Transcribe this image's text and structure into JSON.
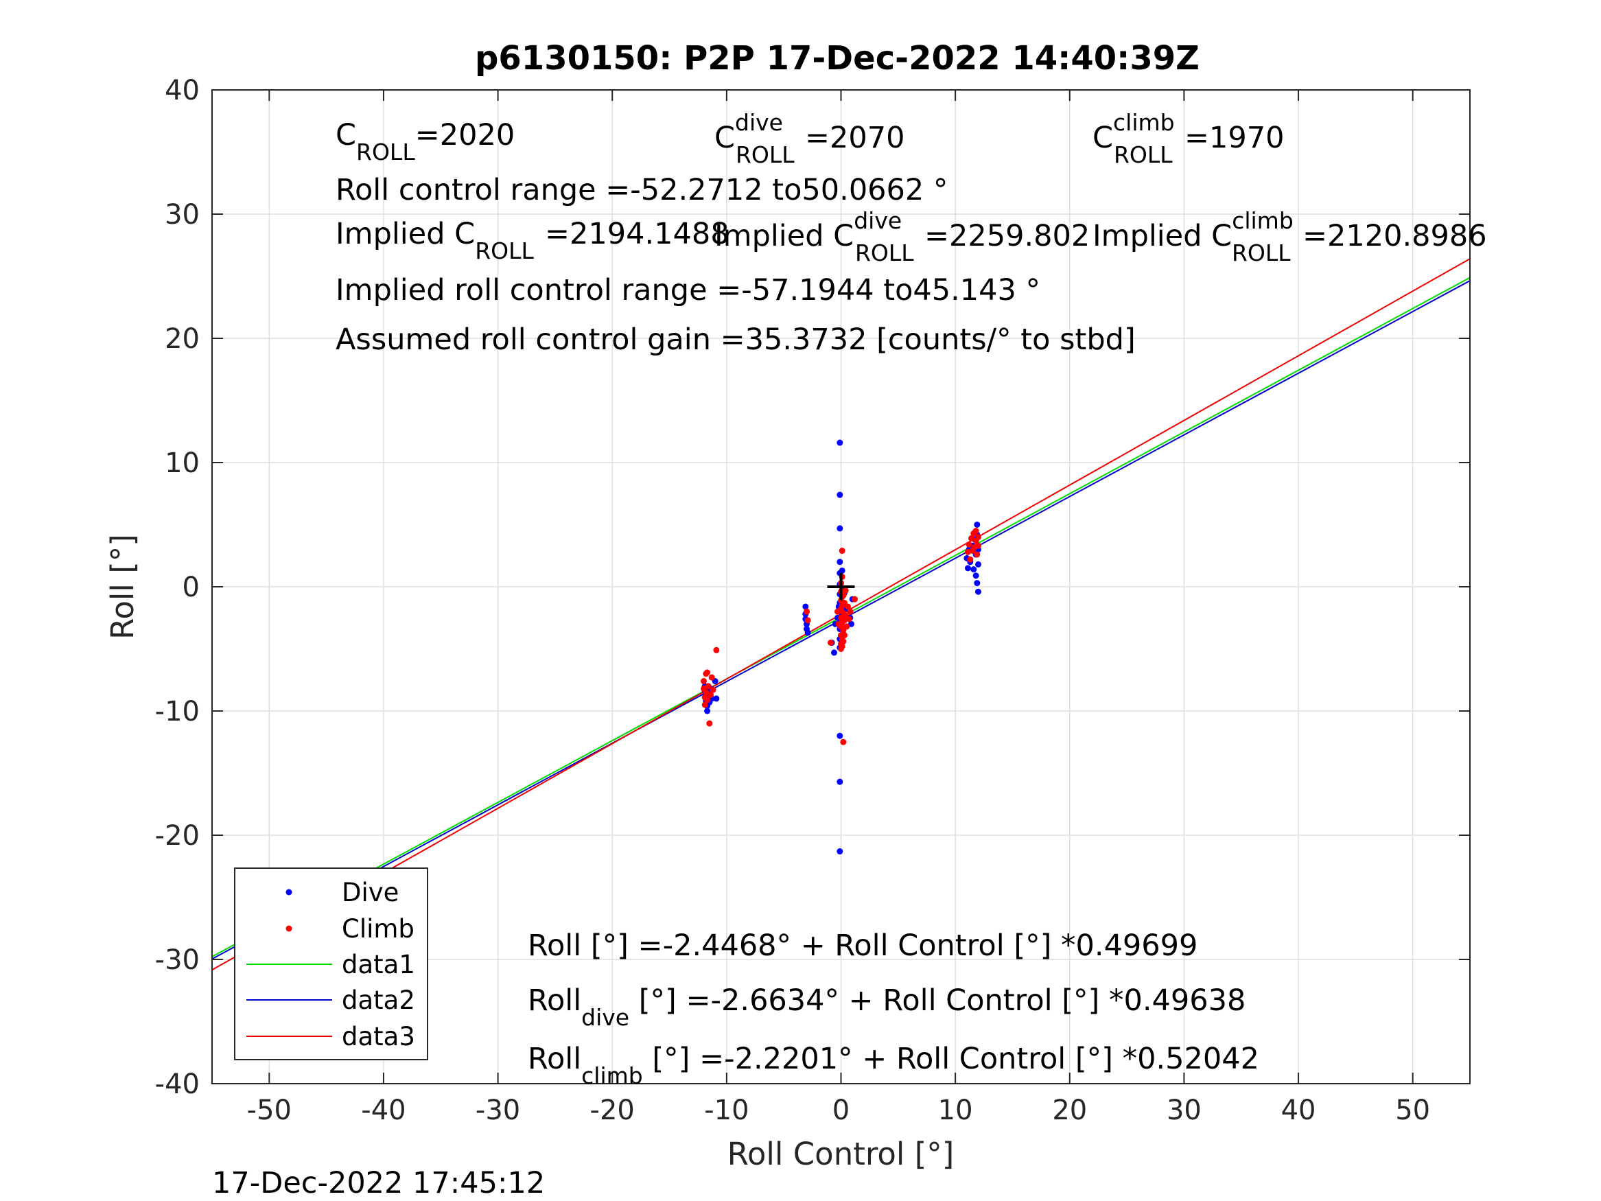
{
  "chart_data": {
    "type": "scatter",
    "title": "p6130150: P2P 17-Dec-2022 14:40:39Z",
    "xlabel": "Roll Control [°]",
    "ylabel": "Roll [°]",
    "xlim": [
      -55,
      55
    ],
    "ylim": [
      -40,
      40
    ],
    "x_ticks": [
      -50,
      -40,
      -30,
      -20,
      -10,
      0,
      10,
      20,
      30,
      40,
      50
    ],
    "y_ticks": [
      -40,
      -30,
      -20,
      -10,
      0,
      10,
      20,
      30,
      40
    ],
    "grid": true,
    "timestamp": "17-Dec-2022 17:45:12",
    "legend_position": "bottom-left",
    "series": [
      {
        "name": "Dive",
        "kind": "points",
        "color": "#0000ff",
        "points": [
          [
            -11.9,
            -8.0
          ],
          [
            -11.9,
            -8.4
          ],
          [
            -11.8,
            -8.8
          ],
          [
            -11.8,
            -9.2
          ],
          [
            -11.7,
            -9.6
          ],
          [
            -11.7,
            -10.0
          ],
          [
            -11.6,
            -8.6
          ],
          [
            -11.5,
            -9.3
          ],
          [
            -11.4,
            -8.2
          ],
          [
            -11.3,
            -9.0
          ],
          [
            -11.0,
            -7.6
          ],
          [
            -10.9,
            -9.0
          ],
          [
            -3.1,
            -1.6
          ],
          [
            -3.1,
            -2.2
          ],
          [
            -3.1,
            -2.6
          ],
          [
            -3.0,
            -3.0
          ],
          [
            -3.0,
            -3.4
          ],
          [
            -2.9,
            -3.7
          ],
          [
            -0.8,
            -4.5
          ],
          [
            -0.6,
            -5.3
          ],
          [
            -0.5,
            -3.0
          ],
          [
            -0.3,
            -2.5
          ],
          [
            -0.2,
            -1.6
          ],
          [
            -0.1,
            11.6
          ],
          [
            -0.1,
            7.4
          ],
          [
            -0.1,
            4.7
          ],
          [
            -0.1,
            2.0
          ],
          [
            -0.1,
            1.1
          ],
          [
            -0.1,
            0.2
          ],
          [
            -0.1,
            -0.6
          ],
          [
            -0.1,
            -1.3
          ],
          [
            -0.1,
            -2.0
          ],
          [
            -0.1,
            -2.7
          ],
          [
            -0.1,
            -3.4
          ],
          [
            -0.1,
            -4.2
          ],
          [
            -0.1,
            -4.9
          ],
          [
            -0.1,
            -12.0
          ],
          [
            -0.1,
            -15.7
          ],
          [
            -0.1,
            -21.3
          ],
          [
            0.1,
            1.3
          ],
          [
            0.1,
            -0.8
          ],
          [
            0.1,
            -2.3
          ],
          [
            0.2,
            -3.8
          ],
          [
            0.3,
            -0.5
          ],
          [
            0.5,
            -1.8
          ],
          [
            0.8,
            -2.5
          ],
          [
            0.9,
            -3.0
          ],
          [
            1.0,
            -1.0
          ],
          [
            11.0,
            2.3
          ],
          [
            11.1,
            1.5
          ],
          [
            11.2,
            3.0
          ],
          [
            11.3,
            2.0
          ],
          [
            11.5,
            3.3
          ],
          [
            11.6,
            1.4
          ],
          [
            11.7,
            3.8
          ],
          [
            11.8,
            2.6
          ],
          [
            11.8,
            0.9
          ],
          [
            11.9,
            4.2
          ],
          [
            11.9,
            5.0
          ],
          [
            11.9,
            0.3
          ],
          [
            12.0,
            1.8
          ],
          [
            12.0,
            -0.4
          ],
          [
            12.0,
            3.0
          ]
        ]
      },
      {
        "name": "Climb",
        "kind": "points",
        "color": "#ff0000",
        "points": [
          [
            -12.0,
            -7.6
          ],
          [
            -12.0,
            -8.2
          ],
          [
            -11.9,
            -8.9
          ],
          [
            -11.9,
            -9.5
          ],
          [
            -11.8,
            -7.0
          ],
          [
            -11.8,
            -8.5
          ],
          [
            -11.7,
            -9.1
          ],
          [
            -11.7,
            -6.9
          ],
          [
            -11.6,
            -8.0
          ],
          [
            -11.5,
            -11.0
          ],
          [
            -11.4,
            -8.7
          ],
          [
            -11.3,
            -7.3
          ],
          [
            -11.2,
            -8.3
          ],
          [
            -10.9,
            -5.1
          ],
          [
            -3.0,
            -2.0
          ],
          [
            -2.9,
            -2.7
          ],
          [
            -0.9,
            -4.5
          ],
          [
            -0.3,
            -2.0
          ],
          [
            -0.2,
            -3.0
          ],
          [
            0.0,
            0.3
          ],
          [
            0.0,
            -0.4
          ],
          [
            0.0,
            -1.1
          ],
          [
            0.0,
            -1.8
          ],
          [
            0.0,
            -2.5
          ],
          [
            0.0,
            -3.2
          ],
          [
            0.0,
            -3.9
          ],
          [
            0.0,
            -4.6
          ],
          [
            0.0,
            -5.0
          ],
          [
            0.1,
            0.8
          ],
          [
            0.1,
            -0.2
          ],
          [
            0.1,
            -1.5
          ],
          [
            0.1,
            -2.9
          ],
          [
            0.1,
            -4.2
          ],
          [
            0.1,
            -4.8
          ],
          [
            0.1,
            2.9
          ],
          [
            0.2,
            -0.7
          ],
          [
            0.2,
            -2.1
          ],
          [
            0.2,
            -3.5
          ],
          [
            0.2,
            -4.4
          ],
          [
            0.2,
            -12.5
          ],
          [
            0.3,
            -1.3
          ],
          [
            0.3,
            -2.7
          ],
          [
            0.3,
            -3.9
          ],
          [
            0.4,
            -0.3
          ],
          [
            0.4,
            -2.3
          ],
          [
            0.5,
            -3.2
          ],
          [
            0.6,
            -1.6
          ],
          [
            0.7,
            -2.6
          ],
          [
            0.8,
            -2.0
          ],
          [
            1.2,
            -1.0
          ],
          [
            11.1,
            2.8
          ],
          [
            11.2,
            3.4
          ],
          [
            11.3,
            2.2
          ],
          [
            11.4,
            3.9
          ],
          [
            11.5,
            2.9
          ],
          [
            11.6,
            4.3
          ],
          [
            11.7,
            3.2
          ],
          [
            11.8,
            3.7
          ],
          [
            11.8,
            4.5
          ],
          [
            11.9,
            2.6
          ],
          [
            12.0,
            4.0
          ],
          [
            12.0,
            3.3
          ]
        ]
      },
      {
        "name": "data1",
        "kind": "line",
        "color": "#00dd00",
        "intercept": -2.4468,
        "slope": 0.49699
      },
      {
        "name": "data2",
        "kind": "line",
        "color": "#0000cc",
        "intercept": -2.6634,
        "slope": 0.49638
      },
      {
        "name": "data3",
        "kind": "line",
        "color": "#ee0000",
        "intercept": -2.2201,
        "slope": 0.52042
      }
    ],
    "marker": {
      "x": 0,
      "y": 0,
      "symbol": "+"
    },
    "annotations": {
      "c_roll": {
        "pre": "C",
        "sub": "ROLL",
        "post": "=2020"
      },
      "c_roll_dive": {
        "pre": "C",
        "sup": "dive",
        "sub": "ROLL",
        "post": "=2070"
      },
      "c_roll_climb": {
        "pre": "C",
        "sup": "climb",
        "sub": "ROLL",
        "post": "=1970"
      },
      "range": "Roll control range =-52.2712 to50.0662 °",
      "implied_c_roll": {
        "pre": "Implied C",
        "sub": "ROLL",
        "post": "=2194.1488"
      },
      "implied_c_roll_dive": {
        "pre": "Implied C",
        "sup": "dive",
        "sub": "ROLL",
        "post": "=2259.802"
      },
      "implied_c_roll_climb": {
        "pre": "Implied C",
        "sup": "climb",
        "sub": "ROLL",
        "post": "=2120.8986"
      },
      "implied_range": "Implied roll control range =-57.1944 to45.143 °",
      "gain": "Assumed roll control gain =35.3732 [counts/° to stbd]",
      "fit_all": "Roll [°] =-2.4468° + Roll Control [°] *0.49699",
      "fit_dive": {
        "pre": "Roll",
        "sub": "dive",
        "post": " [°] =-2.6634° + Roll Control [°] *0.49638"
      },
      "fit_climb": {
        "pre": "Roll",
        "sub": "climb",
        "post": " [°] =-2.2201° + Roll Control [°] *0.52042"
      }
    }
  }
}
